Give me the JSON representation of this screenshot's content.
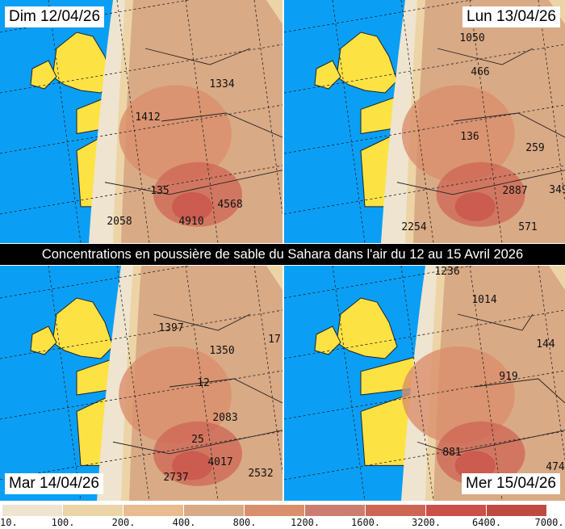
{
  "title": "Concentrations en poussière de sable du Sahara dans l'air du 12 au 15 Avril 2026",
  "colors": {
    "sea": "#0a9ff5",
    "land_clear": "#fde244",
    "border": "#222222"
  },
  "panels": [
    {
      "date": "Dim 12/04/26",
      "values": [
        "1334",
        "1412",
        "135",
        "4568",
        "2058",
        "4910"
      ]
    },
    {
      "date": "Lun 13/04/26",
      "values": [
        "1050",
        "466",
        "136",
        "259",
        "2887",
        "349",
        "2254",
        "571"
      ]
    },
    {
      "date": "Mar 14/04/26",
      "values": [
        "1397",
        "1350",
        "17",
        "12",
        "2083",
        "25",
        "4017",
        "2532",
        "2737"
      ]
    },
    {
      "date": "Mer 15/04/26",
      "values": [
        "1236",
        "1014",
        "144",
        "919",
        "881",
        "474"
      ]
    }
  ],
  "legend": {
    "ticks": [
      "10.",
      "100.",
      "200.",
      "400.",
      "800.",
      "1200.",
      "1600.",
      "3200.",
      "6400.",
      "7000."
    ],
    "colors": [
      "#efe4cf",
      "#ecd4a7",
      "#e9bb8f",
      "#d9aa86",
      "#da8f6c",
      "#cc7d72",
      "#cd6654",
      "#cb5049",
      "#bf4a42"
    ]
  }
}
